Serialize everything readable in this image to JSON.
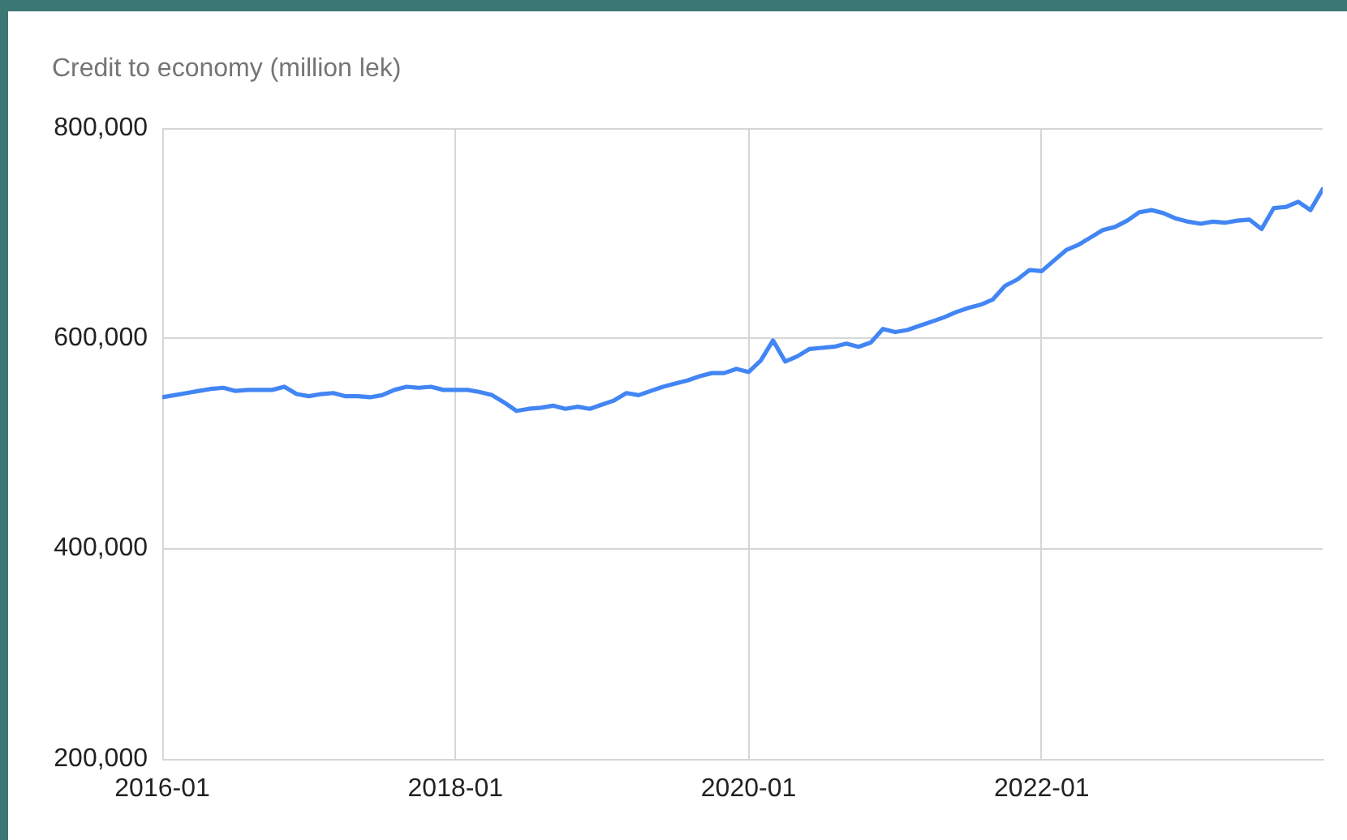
{
  "chart_data": {
    "type": "line",
    "title": "Credit to economy (million lek)",
    "x": [
      "2016-01",
      "2016-02",
      "2016-03",
      "2016-04",
      "2016-05",
      "2016-06",
      "2016-07",
      "2016-08",
      "2016-09",
      "2016-10",
      "2016-11",
      "2016-12",
      "2017-01",
      "2017-02",
      "2017-03",
      "2017-04",
      "2017-05",
      "2017-06",
      "2017-07",
      "2017-08",
      "2017-09",
      "2017-10",
      "2017-11",
      "2017-12",
      "2018-01",
      "2018-02",
      "2018-03",
      "2018-04",
      "2018-05",
      "2018-06",
      "2018-07",
      "2018-08",
      "2018-09",
      "2018-10",
      "2018-11",
      "2018-12",
      "2019-01",
      "2019-02",
      "2019-03",
      "2019-04",
      "2019-05",
      "2019-06",
      "2019-07",
      "2019-08",
      "2019-09",
      "2019-10",
      "2019-11",
      "2019-12",
      "2020-01",
      "2020-02",
      "2020-03",
      "2020-04",
      "2020-05",
      "2020-06",
      "2020-07",
      "2020-08",
      "2020-09",
      "2020-10",
      "2020-11",
      "2020-12",
      "2021-01",
      "2021-02",
      "2021-03",
      "2021-04",
      "2021-05",
      "2021-06",
      "2021-07",
      "2021-08",
      "2021-09",
      "2021-10",
      "2021-11",
      "2021-12",
      "2022-01",
      "2022-02",
      "2022-03",
      "2022-04",
      "2022-05",
      "2022-06",
      "2022-07",
      "2022-08",
      "2022-09",
      "2022-10",
      "2022-11",
      "2022-12",
      "2023-01",
      "2023-02",
      "2023-03",
      "2023-04",
      "2023-05",
      "2023-06",
      "2023-07",
      "2023-08",
      "2023-09",
      "2023-10",
      "2023-11",
      "2023-12"
    ],
    "series": [
      {
        "color": "#4285f4",
        "values": [
          544000,
          546000,
          548000,
          550000,
          552000,
          553000,
          550000,
          551000,
          551000,
          551000,
          554000,
          547000,
          545000,
          547000,
          548000,
          545000,
          545000,
          544000,
          546000,
          551000,
          554000,
          553000,
          554000,
          551000,
          551000,
          551000,
          549000,
          546000,
          539000,
          531000,
          533000,
          534000,
          536000,
          533000,
          535000,
          533000,
          537000,
          541000,
          548000,
          546000,
          550000,
          554000,
          557000,
          560000,
          564000,
          567000,
          567000,
          571000,
          568000,
          579000,
          598000,
          578000,
          583000,
          590000,
          591000,
          592000,
          595000,
          592000,
          596000,
          609000,
          606000,
          608000,
          612000,
          616000,
          620000,
          625000,
          629000,
          632000,
          637000,
          650000,
          656000,
          665000,
          664000,
          674000,
          684000,
          689000,
          696000,
          703000,
          706000,
          712000,
          720000,
          722000,
          719000,
          714000,
          711000,
          709000,
          711000,
          710000,
          712000,
          713000,
          704000,
          724000,
          725000,
          730000,
          722000,
          742000
        ]
      }
    ],
    "xlim": [
      "2016-01",
      "2023-12"
    ],
    "xticks": [
      "2016-01",
      "2018-01",
      "2020-01",
      "2022-01"
    ],
    "ylim": [
      200000,
      800000
    ],
    "yticks": [
      {
        "value": 200000,
        "label": "200,000"
      },
      {
        "value": 400000,
        "label": "400,000"
      },
      {
        "value": 600000,
        "label": "600,000"
      },
      {
        "value": 800000,
        "label": "800,000"
      }
    ],
    "grid": true
  }
}
